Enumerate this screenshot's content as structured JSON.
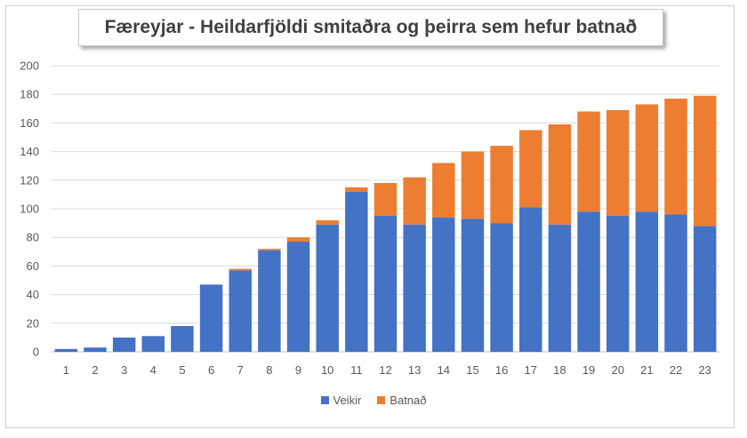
{
  "chart_data": {
    "type": "bar",
    "stacked": true,
    "title": "Færeyjar - Heildarfjöldi smitaðra og þeirra sem hefur batnað",
    "xlabel": "",
    "ylabel": "",
    "ylim": [
      0,
      200
    ],
    "yticks": [
      0,
      20,
      40,
      60,
      80,
      100,
      120,
      140,
      160,
      180,
      200
    ],
    "categories": [
      "1",
      "2",
      "3",
      "4",
      "5",
      "6",
      "7",
      "8",
      "9",
      "10",
      "11",
      "12",
      "13",
      "14",
      "15",
      "16",
      "17",
      "18",
      "19",
      "20",
      "21",
      "22",
      "23"
    ],
    "series": [
      {
        "name": "Veikir",
        "color": "#4472c4",
        "values": [
          2,
          3,
          10,
          11,
          18,
          47,
          57,
          71,
          77,
          89,
          112,
          95,
          89,
          94,
          93,
          90,
          101,
          89,
          98,
          95,
          98,
          96,
          88
        ]
      },
      {
        "name": "Batnað",
        "color": "#ed7d31",
        "values": [
          0,
          0,
          0,
          0,
          0,
          0,
          1,
          1,
          3,
          3,
          3,
          23,
          33,
          38,
          47,
          54,
          54,
          70,
          70,
          74,
          75,
          81,
          91
        ]
      }
    ],
    "grid": true,
    "legend_position": "bottom"
  }
}
